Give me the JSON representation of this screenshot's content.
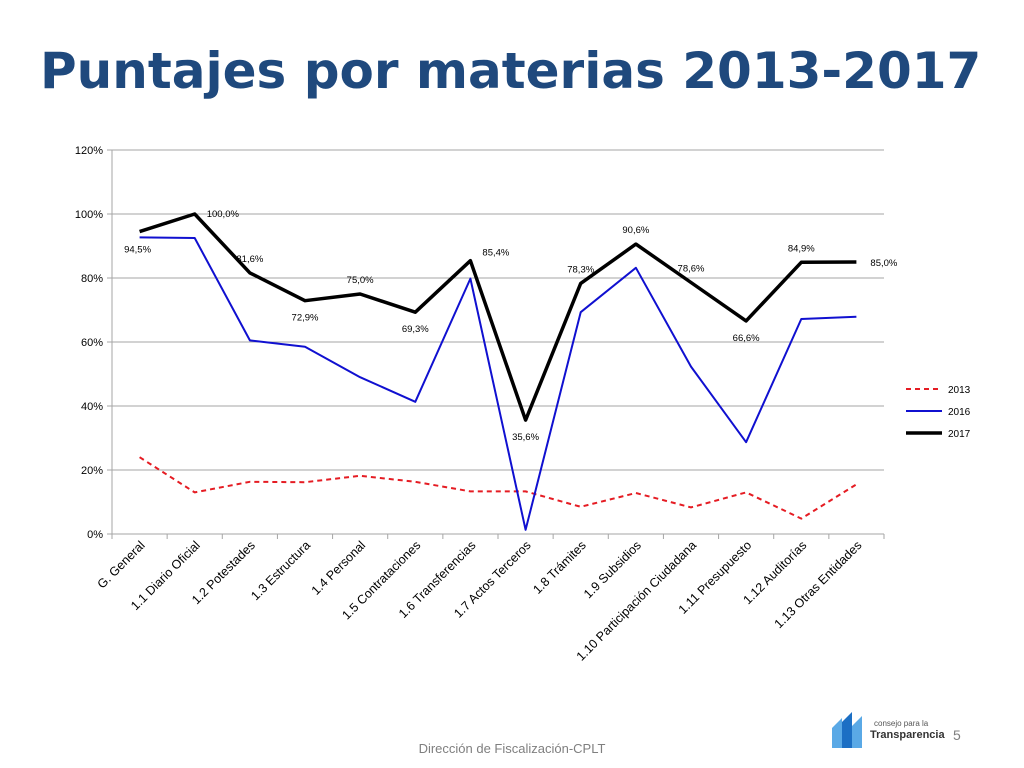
{
  "slide": {
    "title": "Puntajes por materias 2013-2017",
    "footer": "Dirección de Fiscalización-CPLT",
    "page_number": "5",
    "logo_small": "consejo para la",
    "logo_big": "Transparencia"
  },
  "colors": {
    "title": "#1f497d",
    "series_2013": "#e51c23",
    "series_2016": "#1010d0",
    "series_2017": "#000000",
    "grid": "#a6a6a6",
    "logo_blue": "#1c6fc4",
    "logo_light": "#5aa9e6"
  },
  "chart_data": {
    "type": "line",
    "categories": [
      "G. General",
      "1.1 Diario Oficial",
      "1.2 Potestades",
      "1.3 Estructura",
      "1.4 Personal",
      "1.5 Contrataciones",
      "1.6 Transferencias",
      "1.7 Actos Terceros",
      "1.8 Trámites",
      "1.9 Subsidios",
      "1.10 Participación Ciudadana",
      "1.11 Presupuesto",
      "1.12 Auditorías",
      "1.13 Otras Entidades"
    ],
    "ylim": [
      0,
      120
    ],
    "yticks": [
      "0%",
      "20%",
      "40%",
      "60%",
      "80%",
      "100%",
      "120%"
    ],
    "series": [
      {
        "name": "2013",
        "style": "dashed",
        "values": [
          24,
          13,
          16.3,
          16.2,
          18.2,
          16.3,
          13.3,
          13.3,
          8.5,
          12.8,
          8.3,
          13,
          4.8,
          15.5
        ]
      },
      {
        "name": "2016",
        "style": "solid",
        "values": [
          92.7,
          92.5,
          60.5,
          58.5,
          49,
          41.3,
          79.8,
          1.3,
          69.3,
          83.2,
          52.3,
          28.7,
          67.2,
          67.9
        ]
      },
      {
        "name": "2017",
        "style": "solid-thick",
        "values": [
          94.5,
          100,
          81.6,
          72.9,
          75,
          69.3,
          85.4,
          35.6,
          78.3,
          90.6,
          78.6,
          66.6,
          84.9,
          85
        ]
      }
    ],
    "data_labels": [
      "94,5%",
      "100,0%",
      "81,6%",
      "72,9%",
      "75,0%",
      "69,3%",
      "85,4%",
      "35,6%",
      "78,3%",
      "90,6%",
      "78,6%",
      "66,6%",
      "84,9%",
      "85,0%"
    ],
    "legend_position": "right",
    "grid": true
  }
}
